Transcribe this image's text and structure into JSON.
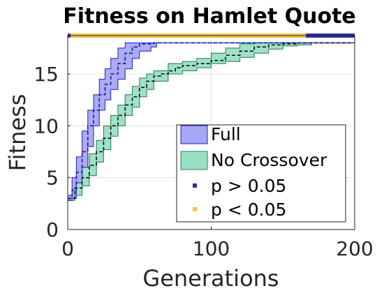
{
  "chart_data": {
    "type": "line",
    "title": "Fitness on Hamlet Quote",
    "xlabel": "Generations",
    "ylabel": "Fitness",
    "xlim": [
      0,
      200
    ],
    "ylim": [
      0,
      18.7
    ],
    "xticks": [
      0,
      100,
      200
    ],
    "yticks": [
      0,
      5,
      10,
      15
    ],
    "grid": true,
    "legend_position": "lower-right",
    "series": [
      {
        "name": "Full",
        "color": "#3333dd",
        "fill_color": "#a6a6f5",
        "mean": [
          [
            0,
            3
          ],
          [
            3,
            3.8
          ],
          [
            6,
            5.5
          ],
          [
            10,
            7.5
          ],
          [
            14,
            10
          ],
          [
            18,
            11.5
          ],
          [
            22,
            13
          ],
          [
            26,
            14
          ],
          [
            30,
            15
          ],
          [
            35,
            16
          ],
          [
            40,
            17
          ],
          [
            45,
            17.6
          ],
          [
            50,
            17.9
          ],
          [
            60,
            18
          ],
          [
            200,
            18
          ]
        ],
        "upper": [
          [
            0,
            3.3
          ],
          [
            3,
            5
          ],
          [
            6,
            7
          ],
          [
            10,
            9.5
          ],
          [
            14,
            11.5
          ],
          [
            18,
            13
          ],
          [
            22,
            14.5
          ],
          [
            26,
            15.5
          ],
          [
            30,
            16.5
          ],
          [
            35,
            17.5
          ],
          [
            40,
            18
          ],
          [
            48,
            18
          ],
          [
            200,
            18
          ]
        ],
        "lower": [
          [
            0,
            2.8
          ],
          [
            3,
            3
          ],
          [
            6,
            4.5
          ],
          [
            10,
            6
          ],
          [
            14,
            8
          ],
          [
            18,
            10
          ],
          [
            22,
            11.5
          ],
          [
            26,
            12.5
          ],
          [
            30,
            13.5
          ],
          [
            35,
            14.5
          ],
          [
            40,
            15.5
          ],
          [
            45,
            16.5
          ],
          [
            50,
            17.2
          ],
          [
            58,
            17.6
          ],
          [
            62,
            18
          ],
          [
            200,
            18
          ]
        ]
      },
      {
        "name": "No Crossover",
        "color": "#111111",
        "fill_color": "#99e0c4",
        "mean": [
          [
            0,
            3
          ],
          [
            5,
            4
          ],
          [
            10,
            5
          ],
          [
            15,
            6.2
          ],
          [
            20,
            7.5
          ],
          [
            25,
            8.8
          ],
          [
            30,
            10
          ],
          [
            35,
            11
          ],
          [
            40,
            12
          ],
          [
            45,
            12.8
          ],
          [
            50,
            13.7
          ],
          [
            55,
            14.3
          ],
          [
            60,
            14.8
          ],
          [
            65,
            15
          ],
          [
            70,
            15.3
          ],
          [
            75,
            15.6
          ],
          [
            80,
            15.8
          ],
          [
            90,
            16
          ],
          [
            100,
            16.3
          ],
          [
            110,
            16.8
          ],
          [
            120,
            17.2
          ],
          [
            130,
            17.6
          ],
          [
            140,
            17.8
          ],
          [
            150,
            17.9
          ],
          [
            160,
            18
          ],
          [
            200,
            18
          ]
        ],
        "upper": [
          [
            0,
            3.3
          ],
          [
            5,
            4.8
          ],
          [
            10,
            6
          ],
          [
            15,
            7.3
          ],
          [
            20,
            8.6
          ],
          [
            25,
            10
          ],
          [
            30,
            11
          ],
          [
            35,
            12
          ],
          [
            40,
            13
          ],
          [
            45,
            13.8
          ],
          [
            50,
            14.6
          ],
          [
            55,
            15
          ],
          [
            60,
            15.3
          ],
          [
            70,
            16
          ],
          [
            80,
            16.2
          ],
          [
            90,
            16.5
          ],
          [
            100,
            17
          ],
          [
            110,
            17.5
          ],
          [
            120,
            17.9
          ],
          [
            130,
            18
          ],
          [
            200,
            18
          ]
        ],
        "lower": [
          [
            0,
            2.8
          ],
          [
            5,
            3.3
          ],
          [
            10,
            4.2
          ],
          [
            15,
            5.2
          ],
          [
            20,
            6.5
          ],
          [
            25,
            7.7
          ],
          [
            30,
            9
          ],
          [
            35,
            10
          ],
          [
            40,
            11
          ],
          [
            45,
            11.8
          ],
          [
            50,
            12.8
          ],
          [
            55,
            13.5
          ],
          [
            60,
            14.3
          ],
          [
            70,
            15
          ],
          [
            80,
            15.3
          ],
          [
            90,
            15.6
          ],
          [
            100,
            16
          ],
          [
            110,
            16.2
          ],
          [
            120,
            16.6
          ],
          [
            130,
            17
          ],
          [
            140,
            17.4
          ],
          [
            150,
            17.7
          ],
          [
            160,
            17.8
          ],
          [
            170,
            18
          ],
          [
            200,
            18
          ]
        ]
      }
    ],
    "significance_bar": {
      "segments": [
        {
          "from": 0,
          "to": 2,
          "label": "p > 0.05"
        },
        {
          "from": 2,
          "to": 166,
          "label": "p < 0.05"
        },
        {
          "from": 166,
          "to": 200,
          "label": "p > 0.05"
        }
      ]
    },
    "legend": [
      {
        "label": "Full",
        "kind": "patch",
        "fill": "#a6a6f5",
        "stroke": "#2222bb"
      },
      {
        "label": "No Crossover",
        "kind": "patch",
        "fill": "#99e0c4",
        "stroke": "#228855"
      },
      {
        "label": "p > 0.05",
        "kind": "dot",
        "fill": "#2e2ea0"
      },
      {
        "label": "p < 0.05",
        "kind": "dot",
        "fill": "#f5c242"
      }
    ],
    "colors": {
      "p_gt": "#2e2ea0",
      "p_lt": "#f5c242"
    }
  }
}
